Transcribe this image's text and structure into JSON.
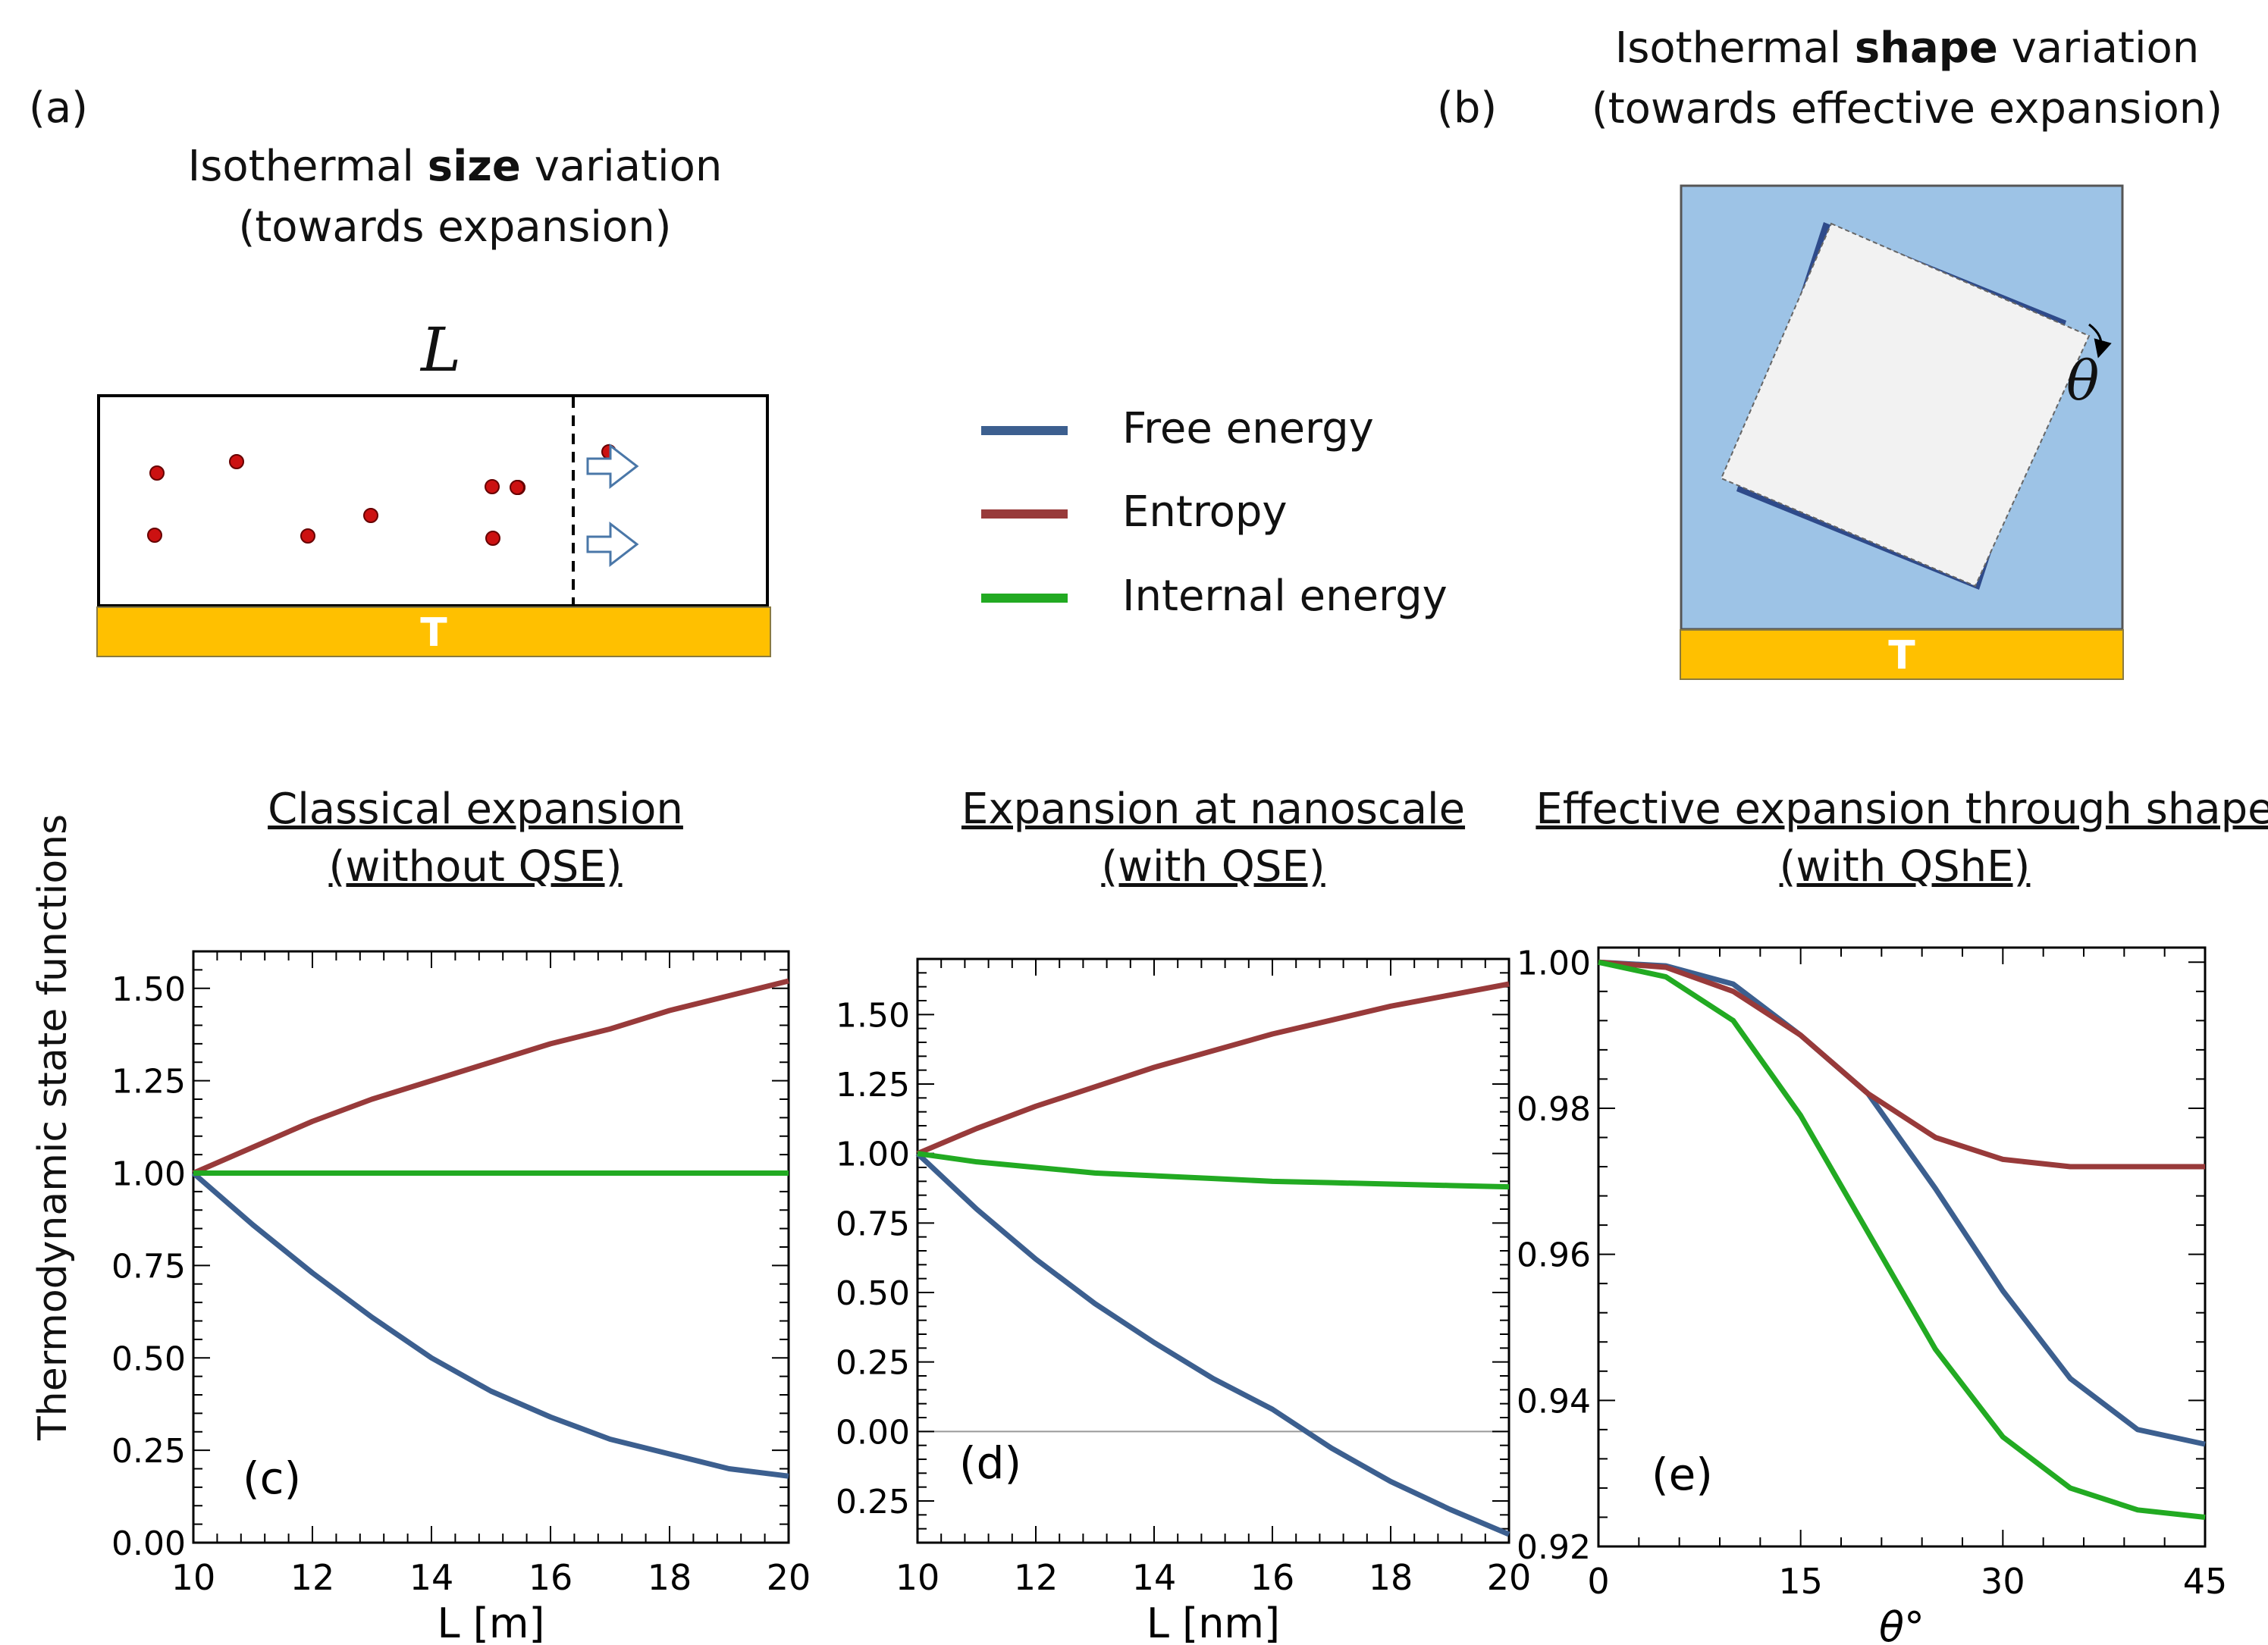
{
  "panel_a": {
    "label": "(a)",
    "heading_pre": "Isothermal ",
    "heading_bold": "size",
    "heading_post": " variation",
    "heading_line2": "(towards expansion)",
    "length_symbol": "L",
    "bath_label": "T"
  },
  "panel_b": {
    "label": "(b)",
    "heading_pre": "Isothermal ",
    "heading_bold": "shape",
    "heading_post": " variation",
    "heading_line2": "(towards effective expansion)",
    "angle_symbol": "θ",
    "bath_label": "T"
  },
  "legend": {
    "items": [
      {
        "label": "Free energy",
        "color": "#3c5f8f"
      },
      {
        "label": "Entropy",
        "color": "#983a3a"
      },
      {
        "label": "Internal energy",
        "color": "#22aa22"
      }
    ]
  },
  "titles": {
    "c_line1": "Classical expansion",
    "c_line2": "(without QSE)",
    "d_line1": "Expansion at nanoscale",
    "d_line2": "(with QSE)",
    "e_line1": "Effective expansion through shape",
    "e_line2": "(with QShE)"
  },
  "y_axis_label": "Thermodynamic state functions",
  "chart_data": [
    {
      "type": "line",
      "panel_label": "(c)",
      "xlabel": "L [m]",
      "xlim": [
        10,
        20
      ],
      "ylim": [
        0,
        1.6
      ],
      "xticks": [
        "10",
        "12",
        "14",
        "16",
        "18",
        "20"
      ],
      "yticks": [
        "0.00",
        "0.25",
        "0.50",
        "0.75",
        "1.00",
        "1.25",
        "1.50"
      ],
      "x": [
        10,
        11,
        12,
        13,
        14,
        15,
        16,
        17,
        18,
        19,
        20
      ],
      "series": [
        {
          "name": "Free energy",
          "color": "#3c5f8f",
          "values": [
            1.0,
            0.86,
            0.73,
            0.61,
            0.5,
            0.41,
            0.34,
            0.28,
            0.24,
            0.2,
            0.18
          ]
        },
        {
          "name": "Entropy",
          "color": "#983a3a",
          "values": [
            1.0,
            1.07,
            1.14,
            1.2,
            1.25,
            1.3,
            1.35,
            1.39,
            1.44,
            1.48,
            1.52
          ]
        },
        {
          "name": "Internal energy",
          "color": "#22aa22",
          "values": [
            1.0,
            1.0,
            1.0,
            1.0,
            1.0,
            1.0,
            1.0,
            1.0,
            1.0,
            1.0,
            1.0
          ]
        }
      ]
    },
    {
      "type": "line",
      "panel_label": "(d)",
      "xlabel": "L [nm]",
      "xlim": [
        10,
        20
      ],
      "ylim": [
        -0.4,
        1.7
      ],
      "xticks": [
        "10",
        "12",
        "14",
        "16",
        "18",
        "20"
      ],
      "yticks": [
        "−0.25",
        "0.00",
        "0.25",
        "0.50",
        "0.75",
        "1.00",
        "1.25",
        "1.50"
      ],
      "ytick_values": [
        -0.25,
        0,
        0.25,
        0.5,
        0.75,
        1.0,
        1.25,
        1.5
      ],
      "zero_line": true,
      "x": [
        10,
        11,
        12,
        13,
        14,
        15,
        16,
        17,
        18,
        19,
        20
      ],
      "series": [
        {
          "name": "Free energy",
          "color": "#3c5f8f",
          "values": [
            1.0,
            0.8,
            0.62,
            0.46,
            0.32,
            0.19,
            0.08,
            -0.06,
            -0.18,
            -0.28,
            -0.37
          ]
        },
        {
          "name": "Entropy",
          "color": "#983a3a",
          "values": [
            1.0,
            1.09,
            1.17,
            1.24,
            1.31,
            1.37,
            1.43,
            1.48,
            1.53,
            1.57,
            1.61
          ]
        },
        {
          "name": "Internal energy",
          "color": "#22aa22",
          "values": [
            1.0,
            0.97,
            0.95,
            0.93,
            0.92,
            0.91,
            0.9,
            0.895,
            0.89,
            0.885,
            0.88
          ]
        }
      ]
    },
    {
      "type": "line",
      "panel_label": "(e)",
      "xlabel": "θ°",
      "xlim": [
        0,
        45
      ],
      "ylim": [
        0.92,
        1.002
      ],
      "xticks": [
        "0",
        "15",
        "30",
        "45"
      ],
      "yticks": [
        "0.92",
        "0.94",
        "0.96",
        "0.98",
        "1.00"
      ],
      "x": [
        0,
        5,
        10,
        15,
        20,
        25,
        30,
        35,
        40,
        45
      ],
      "series": [
        {
          "name": "Free energy",
          "color": "#3c5f8f",
          "values": [
            1.0,
            0.9995,
            0.997,
            0.99,
            0.982,
            0.969,
            0.955,
            0.943,
            0.936,
            0.934
          ]
        },
        {
          "name": "Entropy",
          "color": "#983a3a",
          "values": [
            1.0,
            0.9993,
            0.996,
            0.99,
            0.982,
            0.976,
            0.973,
            0.972,
            0.972,
            0.972
          ]
        },
        {
          "name": "Internal energy",
          "color": "#22aa22",
          "values": [
            1.0,
            0.998,
            0.992,
            0.979,
            0.963,
            0.947,
            0.935,
            0.928,
            0.925,
            0.924
          ]
        }
      ]
    }
  ]
}
